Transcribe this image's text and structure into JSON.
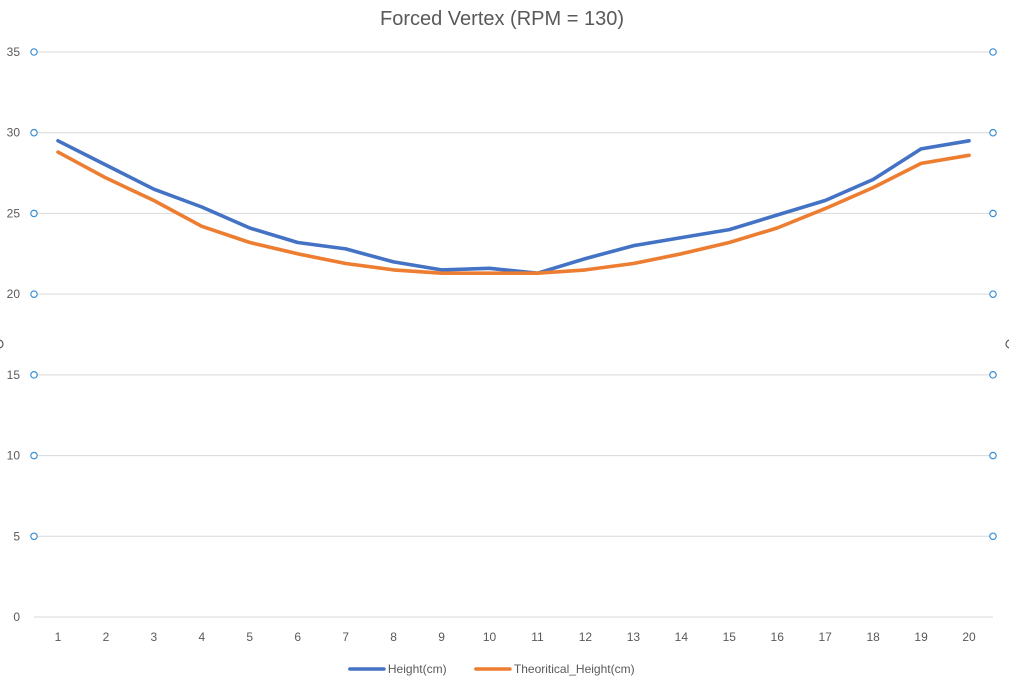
{
  "chart_data": {
    "type": "line",
    "title": "Forced Vertex (RPM = 130)",
    "categories": [
      "1",
      "2",
      "3",
      "4",
      "5",
      "6",
      "7",
      "8",
      "9",
      "10",
      "11",
      "12",
      "13",
      "14",
      "15",
      "16",
      "17",
      "18",
      "19",
      "20"
    ],
    "yticks": [
      "0",
      "5",
      "10",
      "15",
      "20",
      "25",
      "30",
      "35"
    ],
    "ylim": [
      0,
      35
    ],
    "grid": true,
    "legend_position": "bottom",
    "series": [
      {
        "name": "Height(cm)",
        "color": "#4472c4",
        "values": [
          29.5,
          28.0,
          26.5,
          25.4,
          24.1,
          23.2,
          22.8,
          22.0,
          21.5,
          21.6,
          21.3,
          22.2,
          23.0,
          23.5,
          24.0,
          24.9,
          25.8,
          27.1,
          29.0,
          29.5
        ]
      },
      {
        "name": "Theoritical_Height(cm)",
        "color": "#ed7d31",
        "values": [
          28.8,
          27.2,
          25.8,
          24.2,
          23.2,
          22.5,
          21.9,
          21.5,
          21.3,
          21.3,
          21.3,
          21.5,
          21.9,
          22.5,
          23.2,
          24.1,
          25.3,
          26.6,
          28.1,
          28.6
        ]
      }
    ]
  }
}
